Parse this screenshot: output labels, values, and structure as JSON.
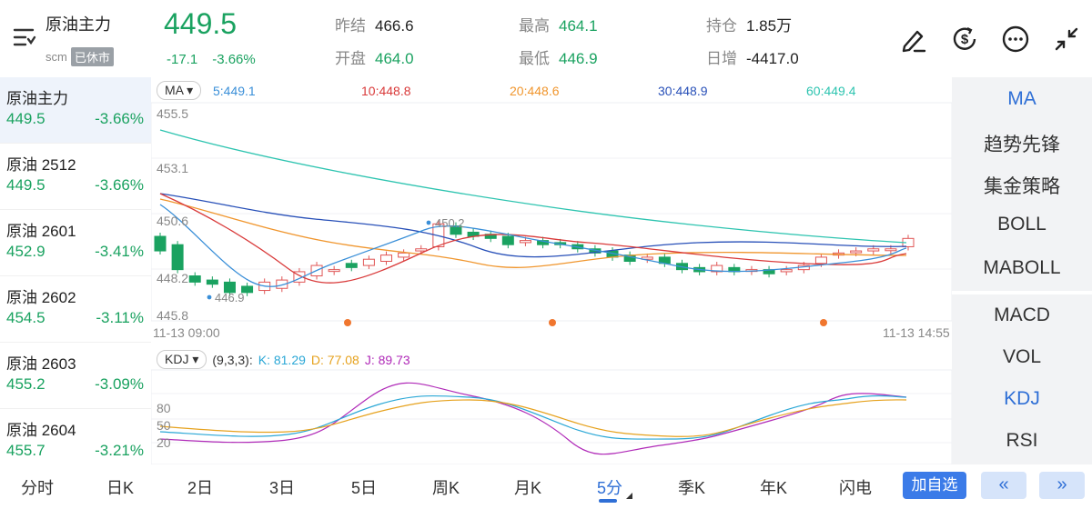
{
  "header": {
    "name": "原油主力",
    "exchange": "scm",
    "status": "已休市",
    "price": "449.5",
    "change": "-17.1",
    "change_pct": "-3.66%",
    "stats": [
      {
        "label": "昨结",
        "value": "466.6",
        "green": false
      },
      {
        "label": "开盘",
        "value": "464.0",
        "green": true
      },
      {
        "label": "最高",
        "value": "464.1",
        "green": true
      },
      {
        "label": "最低",
        "value": "446.9",
        "green": true
      },
      {
        "label": "持仓",
        "value": "1.85万",
        "green": false
      },
      {
        "label": "日增",
        "value": "-4417.0",
        "green": false
      }
    ],
    "icons": [
      "pen-icon",
      "currency-icon",
      "more-icon",
      "collapse-icon"
    ]
  },
  "sidebar": {
    "items": [
      {
        "name": "原油主力",
        "price": "449.5",
        "pct": "-3.66%"
      },
      {
        "name": "原油 2512",
        "price": "449.5",
        "pct": "-3.66%"
      },
      {
        "name": "原油 2601",
        "price": "452.9",
        "pct": "-3.41%"
      },
      {
        "name": "原油 2602",
        "price": "454.5",
        "pct": "-3.11%"
      },
      {
        "name": "原油 2603",
        "price": "455.2",
        "pct": "-3.09%"
      },
      {
        "name": "原油 2604",
        "price": "455.7",
        "pct": "-3.21%"
      }
    ]
  },
  "chart": {
    "ma_selector": "MA",
    "ma_legend": [
      {
        "label": "5:449.1",
        "color": "#3a8fd8"
      },
      {
        "label": "10:448.8",
        "color": "#d93a3a"
      },
      {
        "label": "20:448.6",
        "color": "#f0962e"
      },
      {
        "label": "30:448.9",
        "color": "#2850b8"
      },
      {
        "label": "60:449.4",
        "color": "#2ec4b0"
      }
    ],
    "y_labels": [
      "455.5",
      "453.1",
      "450.6",
      "448.2",
      "445.8"
    ],
    "time_start": "11-13 09:00",
    "time_end": "11-13 14:55",
    "high_mark": "450.2",
    "low_mark": "446.9",
    "kdj_selector": "KDJ",
    "kdj_params": "(9,3,3):",
    "kdj_legend": [
      {
        "label": "K: 81.29",
        "color": "#2aa7d6"
      },
      {
        "label": "D: 77.08",
        "color": "#e6a21e"
      },
      {
        "label": "J: 89.73",
        "color": "#b02ab8"
      }
    ],
    "kdj_levels": [
      "80",
      "50",
      "20"
    ]
  },
  "indicators": {
    "top": [
      {
        "label": "MA",
        "active": true
      },
      {
        "label": "趋势先锋",
        "active": false
      },
      {
        "label": "集金策略",
        "active": false
      },
      {
        "label": "BOLL",
        "active": false
      },
      {
        "label": "MABOLL",
        "active": false
      }
    ],
    "bottom": [
      {
        "label": "MACD",
        "active": false
      },
      {
        "label": "VOL",
        "active": false
      },
      {
        "label": "KDJ",
        "active": true
      },
      {
        "label": "RSI",
        "active": false
      }
    ]
  },
  "tabs": [
    "分时",
    "日K",
    "2日",
    "3日",
    "5日",
    "周K",
    "月K",
    "5分",
    "季K",
    "年K",
    "闪电"
  ],
  "active_tab": "5分",
  "actions": {
    "add_watch": "加自选",
    "prev": "«",
    "next": "»"
  },
  "chart_data": {
    "type": "candlestick",
    "ylim": [
      445.8,
      455.5
    ],
    "candles_approx": [
      [
        449.6,
        448.9
      ],
      [
        449.2,
        448.0
      ],
      [
        447.7,
        447.4
      ],
      [
        447.5,
        447.3
      ],
      [
        447.4,
        446.9
      ],
      [
        447.2,
        446.9
      ],
      [
        447.0,
        447.4
      ],
      [
        447.1,
        447.5
      ],
      [
        447.4,
        447.9
      ],
      [
        447.7,
        448.2
      ],
      [
        448.0,
        448.0
      ],
      [
        448.3,
        448.1
      ],
      [
        448.2,
        448.5
      ],
      [
        448.4,
        448.7
      ],
      [
        448.6,
        448.8
      ],
      [
        448.9,
        449.0
      ],
      [
        449.1,
        450.2
      ],
      [
        450.1,
        449.7
      ],
      [
        449.8,
        449.6
      ],
      [
        449.7,
        449.5
      ],
      [
        449.6,
        449.2
      ],
      [
        449.3,
        449.4
      ],
      [
        449.4,
        449.2
      ],
      [
        449.3,
        449.2
      ],
      [
        449.2,
        449.0
      ],
      [
        449.0,
        448.8
      ],
      [
        448.9,
        448.6
      ],
      [
        448.7,
        448.4
      ],
      [
        448.5,
        448.6
      ],
      [
        448.6,
        448.3
      ],
      [
        448.3,
        448.0
      ],
      [
        448.1,
        447.9
      ],
      [
        447.9,
        448.2
      ],
      [
        448.1,
        447.9
      ],
      [
        448.0,
        448.0
      ],
      [
        448.0,
        447.8
      ],
      [
        447.9,
        448.0
      ],
      [
        448.0,
        448.2
      ],
      [
        448.3,
        448.6
      ],
      [
        448.7,
        448.8
      ],
      [
        448.9,
        448.9
      ],
      [
        448.9,
        449.0
      ],
      [
        449.0,
        449.0
      ],
      [
        449.1,
        449.5
      ]
    ]
  }
}
